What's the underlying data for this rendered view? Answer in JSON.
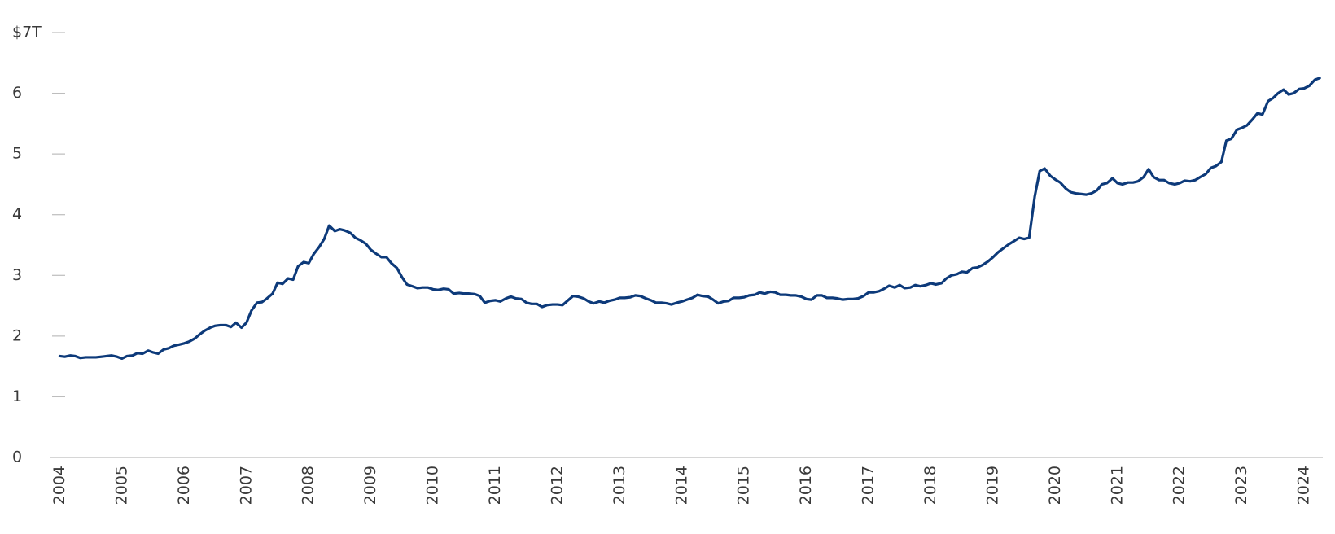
{
  "chart_data": {
    "type": "line",
    "color": "#0d3a7a",
    "xlim": [
      2003.85,
      2024.3
    ],
    "xticks": [
      2004,
      2005,
      2006,
      2007,
      2008,
      2009,
      2010,
      2011,
      2012,
      2013,
      2014,
      2015,
      2016,
      2017,
      2018,
      2019,
      2020,
      2021,
      2022,
      2023,
      2024
    ],
    "ylim": [
      0,
      7
    ],
    "yticks": [
      0,
      1,
      2,
      3,
      4,
      5,
      6,
      {
        "value": 7,
        "label": "$7T"
      }
    ],
    "x": [
      2004,
      2004.08,
      2004.17,
      2004.25,
      2004.33,
      2004.42,
      2004.5,
      2004.58,
      2004.67,
      2004.75,
      2004.83,
      2004.92,
      2005,
      2005.08,
      2005.17,
      2005.25,
      2005.33,
      2005.42,
      2005.5,
      2005.58,
      2005.67,
      2005.75,
      2005.83,
      2005.92,
      2006,
      2006.08,
      2006.17,
      2006.25,
      2006.33,
      2006.42,
      2006.5,
      2006.58,
      2006.67,
      2006.75,
      2006.83,
      2006.92,
      2007,
      2007.08,
      2007.17,
      2007.25,
      2007.33,
      2007.42,
      2007.5,
      2007.58,
      2007.67,
      2007.75,
      2007.83,
      2007.92,
      2008,
      2008.08,
      2008.17,
      2008.25,
      2008.33,
      2008.42,
      2008.5,
      2008.58,
      2008.67,
      2008.75,
      2008.83,
      2008.92,
      2009,
      2009.08,
      2009.17,
      2009.25,
      2009.33,
      2009.42,
      2009.5,
      2009.58,
      2009.67,
      2009.75,
      2009.83,
      2009.92,
      2010,
      2010.08,
      2010.17,
      2010.25,
      2010.33,
      2010.42,
      2010.5,
      2010.58,
      2010.67,
      2010.75,
      2010.83,
      2010.92,
      2011,
      2011.08,
      2011.17,
      2011.25,
      2011.33,
      2011.42,
      2011.5,
      2011.58,
      2011.67,
      2011.75,
      2011.83,
      2011.92,
      2012,
      2012.08,
      2012.17,
      2012.25,
      2012.33,
      2012.42,
      2012.5,
      2012.58,
      2012.67,
      2012.75,
      2012.83,
      2012.92,
      2013,
      2013.08,
      2013.17,
      2013.25,
      2013.33,
      2013.42,
      2013.5,
      2013.58,
      2013.67,
      2013.75,
      2013.83,
      2013.92,
      2014,
      2014.08,
      2014.17,
      2014.25,
      2014.33,
      2014.42,
      2014.5,
      2014.58,
      2014.67,
      2014.75,
      2014.83,
      2014.92,
      2015,
      2015.08,
      2015.17,
      2015.25,
      2015.33,
      2015.42,
      2015.5,
      2015.58,
      2015.67,
      2015.75,
      2015.83,
      2015.92,
      2016,
      2016.08,
      2016.17,
      2016.25,
      2016.33,
      2016.42,
      2016.5,
      2016.58,
      2016.67,
      2016.75,
      2016.83,
      2016.92,
      2017,
      2017.08,
      2017.17,
      2017.25,
      2017.33,
      2017.42,
      2017.5,
      2017.58,
      2017.67,
      2017.75,
      2017.83,
      2017.92,
      2018,
      2018.08,
      2018.17,
      2018.25,
      2018.33,
      2018.42,
      2018.5,
      2018.58,
      2018.67,
      2018.75,
      2018.83,
      2018.92,
      2019,
      2019.08,
      2019.17,
      2019.25,
      2019.33,
      2019.42,
      2019.5,
      2019.58,
      2019.67,
      2019.75,
      2019.83,
      2019.92,
      2020,
      2020.08,
      2020.17,
      2020.25,
      2020.33,
      2020.42,
      2020.5,
      2020.58,
      2020.67,
      2020.75,
      2020.83,
      2020.92,
      2021,
      2021.08,
      2021.17,
      2021.25,
      2021.33,
      2021.42,
      2021.5,
      2021.58,
      2021.67,
      2021.75,
      2021.83,
      2021.92,
      2022,
      2022.08,
      2022.17,
      2022.25,
      2022.33,
      2022.42,
      2022.5,
      2022.58,
      2022.67,
      2022.75,
      2022.83,
      2022.92,
      2023,
      2023.08,
      2023.17,
      2023.25,
      2023.33,
      2023.42,
      2023.5,
      2023.58,
      2023.67,
      2023.75,
      2023.83,
      2023.92,
      2024,
      2024.08,
      2024.17,
      2024.25
    ],
    "values": [
      1.67,
      1.66,
      1.68,
      1.67,
      1.64,
      1.65,
      1.65,
      1.65,
      1.66,
      1.67,
      1.68,
      1.66,
      1.63,
      1.67,
      1.68,
      1.72,
      1.71,
      1.76,
      1.73,
      1.71,
      1.78,
      1.8,
      1.84,
      1.86,
      1.88,
      1.91,
      1.96,
      2.03,
      2.09,
      2.14,
      2.17,
      2.18,
      2.18,
      2.15,
      2.22,
      2.14,
      2.22,
      2.42,
      2.55,
      2.56,
      2.62,
      2.7,
      2.88,
      2.86,
      2.95,
      2.93,
      3.15,
      3.22,
      3.2,
      3.35,
      3.47,
      3.6,
      3.82,
      3.73,
      3.76,
      3.74,
      3.7,
      3.62,
      3.58,
      3.52,
      3.42,
      3.36,
      3.3,
      3.3,
      3.2,
      3.12,
      2.97,
      2.85,
      2.82,
      2.79,
      2.8,
      2.8,
      2.77,
      2.76,
      2.78,
      2.77,
      2.7,
      2.71,
      2.7,
      2.7,
      2.69,
      2.66,
      2.55,
      2.58,
      2.59,
      2.57,
      2.62,
      2.65,
      2.62,
      2.61,
      2.55,
      2.53,
      2.53,
      2.48,
      2.51,
      2.52,
      2.52,
      2.51,
      2.59,
      2.66,
      2.65,
      2.62,
      2.57,
      2.54,
      2.57,
      2.55,
      2.58,
      2.6,
      2.63,
      2.63,
      2.64,
      2.67,
      2.66,
      2.62,
      2.59,
      2.55,
      2.55,
      2.54,
      2.52,
      2.55,
      2.57,
      2.6,
      2.63,
      2.68,
      2.66,
      2.65,
      2.6,
      2.54,
      2.57,
      2.58,
      2.63,
      2.63,
      2.64,
      2.67,
      2.68,
      2.72,
      2.7,
      2.73,
      2.72,
      2.68,
      2.68,
      2.67,
      2.67,
      2.65,
      2.61,
      2.6,
      2.67,
      2.67,
      2.63,
      2.63,
      2.62,
      2.6,
      2.61,
      2.61,
      2.62,
      2.66,
      2.72,
      2.72,
      2.74,
      2.78,
      2.83,
      2.8,
      2.84,
      2.79,
      2.8,
      2.84,
      2.82,
      2.84,
      2.87,
      2.85,
      2.87,
      2.95,
      3.0,
      3.02,
      3.06,
      3.05,
      3.12,
      3.13,
      3.17,
      3.23,
      3.3,
      3.38,
      3.45,
      3.51,
      3.56,
      3.62,
      3.6,
      3.62,
      4.3,
      4.72,
      4.76,
      4.64,
      4.58,
      4.53,
      4.43,
      4.37,
      4.35,
      4.34,
      4.33,
      4.35,
      4.4,
      4.5,
      4.52,
      4.6,
      4.52,
      4.5,
      4.53,
      4.53,
      4.55,
      4.62,
      4.75,
      4.62,
      4.57,
      4.57,
      4.52,
      4.5,
      4.52,
      4.56,
      4.55,
      4.57,
      4.62,
      4.67,
      4.77,
      4.8,
      4.87,
      5.22,
      5.25,
      5.4,
      5.43,
      5.47,
      5.57,
      5.67,
      5.65,
      5.87,
      5.92,
      6.0,
      6.06,
      5.98,
      6.0,
      6.07,
      6.08,
      6.12,
      6.22,
      6.25
    ]
  }
}
